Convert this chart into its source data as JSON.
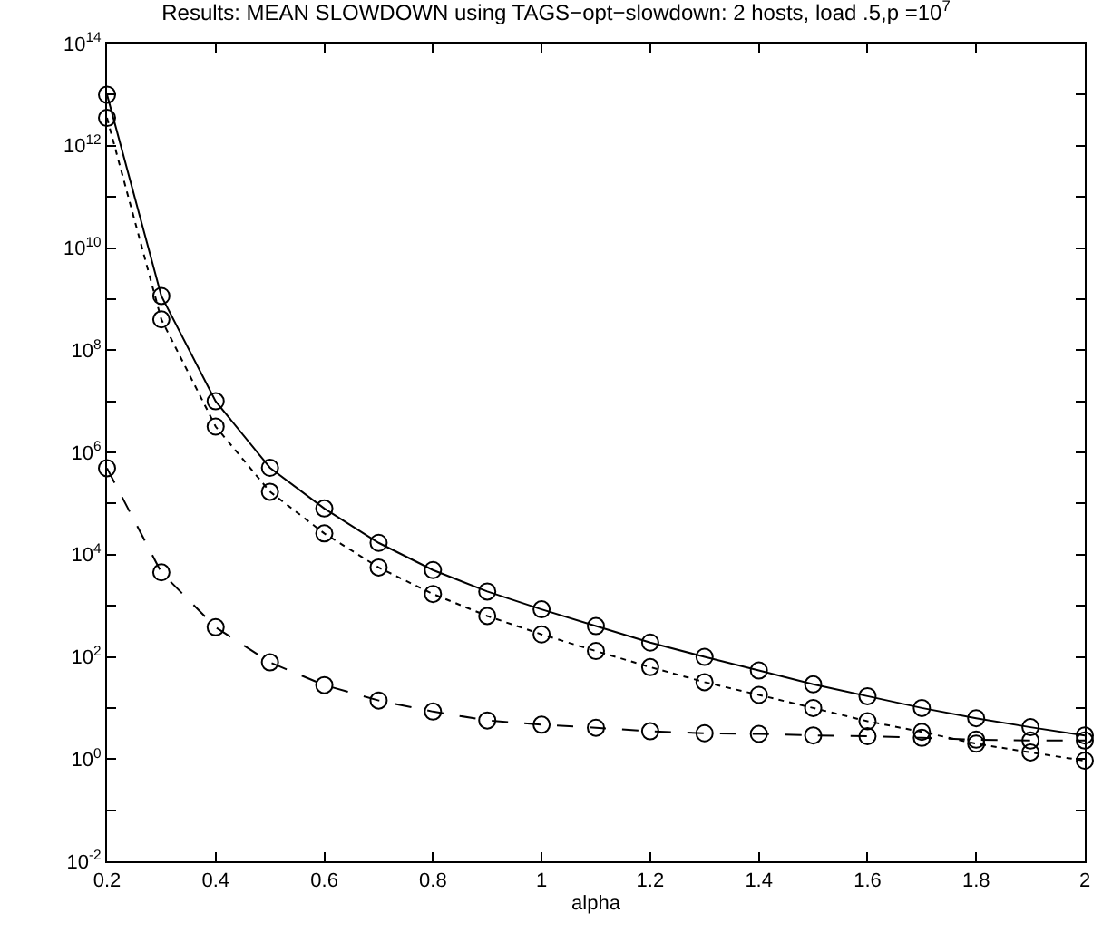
{
  "chart_data": {
    "type": "line",
    "title": "Results: MEAN SLOWDOWN using TAGS−opt−slowdown: 2 hosts, load .5,p =10$^{7}$",
    "xlabel": "alpha",
    "x": [
      0.2,
      0.3,
      0.4,
      0.5,
      0.6,
      0.7,
      0.8,
      0.9,
      1.0,
      1.1,
      1.2,
      1.3,
      1.4,
      1.5,
      1.6,
      1.7,
      1.8,
      1.9,
      2.0
    ],
    "series": [
      {
        "color": "#000000",
        "line_style": "solid",
        "values": [
          10000000000000.0,
          1150000000.0,
          10000000.0,
          500000.0,
          80000.0,
          17000.0,
          5000.0,
          1900.0,
          850,
          400,
          190,
          100,
          54,
          29,
          17,
          10,
          6.3,
          4.2,
          2.9
        ]
      },
      {
        "color": "#000000",
        "line_style": "dotted",
        "values": [
          3500000000000.0,
          400000000.0,
          3200000.0,
          170000.0,
          26000.0,
          5600.0,
          1700.0,
          630,
          275,
          130,
          63,
          32,
          18,
          10,
          5.5,
          3.4,
          2.0,
          1.35,
          0.93
        ]
      },
      {
        "color": "#000000",
        "line_style": "dashed",
        "values": [
          490000.0,
          4500.0,
          380,
          78,
          28,
          14,
          8.5,
          5.7,
          4.7,
          4.1,
          3.5,
          3.2,
          3.1,
          2.9,
          2.8,
          2.6,
          2.4,
          2.3,
          2.3
        ]
      }
    ],
    "log": true,
    "marker": "circle",
    "xlim": [
      0.2,
      2
    ],
    "xticks": [
      0.2,
      0.4,
      0.6,
      0.8,
      1,
      1.2,
      1.4,
      1.6,
      1.8,
      2
    ],
    "ylim": [
      0.01,
      100000000000000.0
    ],
    "yticks": [
      {
        "value": 0.01,
        "label": "10$^{-2}$"
      },
      {
        "value": 0.1,
        "label": null
      },
      {
        "value": 1,
        "label": "10$^{0}$"
      },
      {
        "value": 10,
        "label": null
      },
      {
        "value": 100,
        "label": "10$^{2}$"
      },
      {
        "value": 1000,
        "label": null
      },
      {
        "value": 10000.0,
        "label": "10$^{4}$"
      },
      {
        "value": 100000.0,
        "label": null
      },
      {
        "value": 1000000.0,
        "label": "10$^{6}$"
      },
      {
        "value": 10000000.0,
        "label": null
      },
      {
        "value": 100000000.0,
        "label": "10$^{8}$"
      },
      {
        "value": 1000000000.0,
        "label": null
      },
      {
        "value": 10000000000.0,
        "label": "10$^{10}$"
      },
      {
        "value": 100000000000.0,
        "label": null
      },
      {
        "value": 1000000000000.0,
        "label": "10$^{12}$"
      },
      {
        "value": 10000000000000.0,
        "label": null
      },
      {
        "value": 100000000000000.0,
        "label": "10$^{14}$"
      }
    ]
  }
}
